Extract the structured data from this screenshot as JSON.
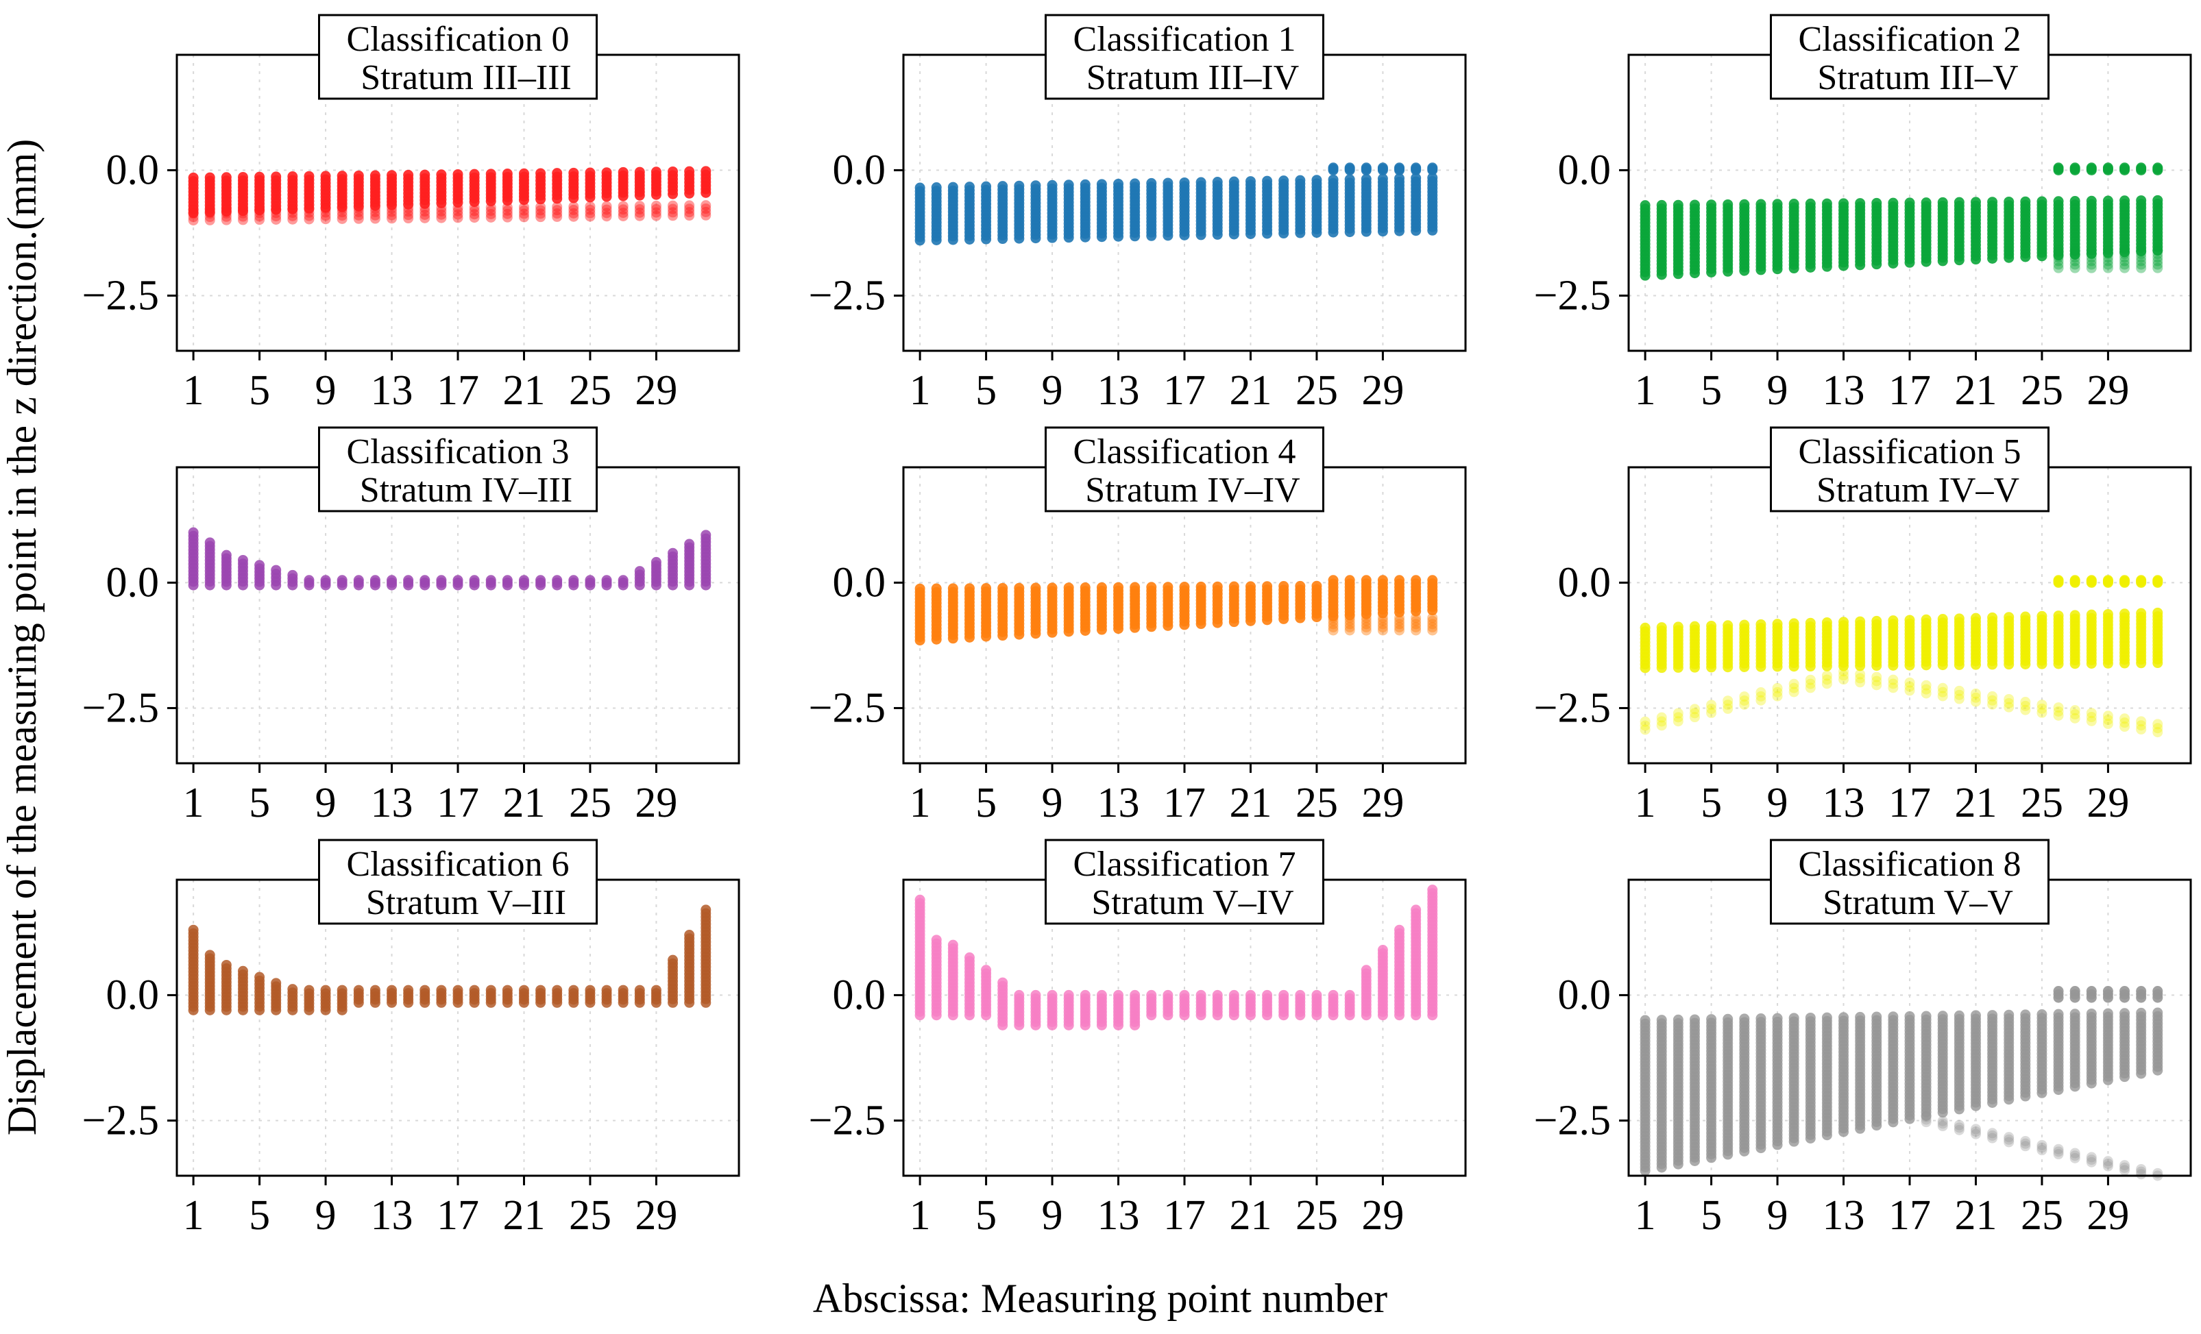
{
  "figure": {
    "ylabel": "Displacement of the measuring point in the z direction.(mm)",
    "xlabel": "Abscissa: Measuring point number"
  },
  "chart_data": [
    {
      "type": "scatter",
      "title": "Classification 0",
      "subtitle": "Stratum III–III",
      "color": "#ff1f1f",
      "xticks": [
        "1",
        "5",
        "9",
        "13",
        "17",
        "21",
        "25",
        "29"
      ],
      "yticks": [
        "0.0",
        "−2.5"
      ],
      "ylim": [
        -3.6,
        2.3
      ],
      "xlim": [
        0,
        34
      ],
      "grid": true,
      "profile": "c0"
    },
    {
      "type": "scatter",
      "title": "Classification 1",
      "subtitle": "Stratum III–IV",
      "color": "#1f77b4",
      "xticks": [
        "1",
        "5",
        "9",
        "13",
        "17",
        "21",
        "25",
        "29"
      ],
      "yticks": [
        "0.0",
        "−2.5"
      ],
      "ylim": [
        -3.6,
        2.3
      ],
      "xlim": [
        0,
        34
      ],
      "grid": true,
      "profile": "c1"
    },
    {
      "type": "scatter",
      "title": "Classification 2",
      "subtitle": "Stratum III–V",
      "color": "#0aa63a",
      "xticks": [
        "1",
        "5",
        "9",
        "13",
        "17",
        "21",
        "25",
        "29"
      ],
      "yticks": [
        "0.0",
        "−2.5"
      ],
      "ylim": [
        -3.6,
        2.3
      ],
      "xlim": [
        0,
        34
      ],
      "grid": true,
      "profile": "c2"
    },
    {
      "type": "scatter",
      "title": "Classification 3",
      "subtitle": "Stratum IV–III",
      "color": "#9b45b0",
      "xticks": [
        "1",
        "5",
        "9",
        "13",
        "17",
        "21",
        "25",
        "29"
      ],
      "yticks": [
        "0.0",
        "−2.5"
      ],
      "ylim": [
        -3.6,
        2.3
      ],
      "xlim": [
        0,
        34
      ],
      "grid": true,
      "profile": "c3"
    },
    {
      "type": "scatter",
      "title": "Classification 4",
      "subtitle": "Stratum IV–IV",
      "color": "#ff7f0e",
      "xticks": [
        "1",
        "5",
        "9",
        "13",
        "17",
        "21",
        "25",
        "29"
      ],
      "yticks": [
        "0.0",
        "−2.5"
      ],
      "ylim": [
        -3.6,
        2.3
      ],
      "xlim": [
        0,
        34
      ],
      "grid": true,
      "profile": "c4"
    },
    {
      "type": "scatter",
      "title": "Classification 5",
      "subtitle": "Stratum IV–V",
      "color": "#f0f000",
      "xticks": [
        "1",
        "5",
        "9",
        "13",
        "17",
        "21",
        "25",
        "29"
      ],
      "yticks": [
        "0.0",
        "−2.5"
      ],
      "ylim": [
        -3.6,
        2.3
      ],
      "xlim": [
        0,
        34
      ],
      "grid": true,
      "profile": "c5"
    },
    {
      "type": "scatter",
      "title": "Classification 6",
      "subtitle": "Stratum V–III",
      "color": "#b35a28",
      "xticks": [
        "1",
        "5",
        "9",
        "13",
        "17",
        "21",
        "25",
        "29"
      ],
      "yticks": [
        "0.0",
        "−2.5"
      ],
      "ylim": [
        -3.6,
        2.3
      ],
      "xlim": [
        0,
        34
      ],
      "grid": true,
      "profile": "c6"
    },
    {
      "type": "scatter",
      "title": "Classification 7",
      "subtitle": "Stratum V–IV",
      "color": "#f77fc4",
      "xticks": [
        "1",
        "5",
        "9",
        "13",
        "17",
        "21",
        "25",
        "29"
      ],
      "yticks": [
        "0.0",
        "−2.5"
      ],
      "ylim": [
        -3.6,
        2.3
      ],
      "xlim": [
        0,
        34
      ],
      "grid": true,
      "profile": "c7"
    },
    {
      "type": "scatter",
      "title": "Classification 8",
      "subtitle": "Stratum  V–V",
      "color": "#969696",
      "xticks": [
        "1",
        "5",
        "9",
        "13",
        "17",
        "21",
        "25",
        "29"
      ],
      "yticks": [
        "0.0",
        "−2.5"
      ],
      "ylim": [
        -3.6,
        2.3
      ],
      "xlim": [
        0,
        34
      ],
      "grid": true,
      "profile": "c8"
    }
  ]
}
